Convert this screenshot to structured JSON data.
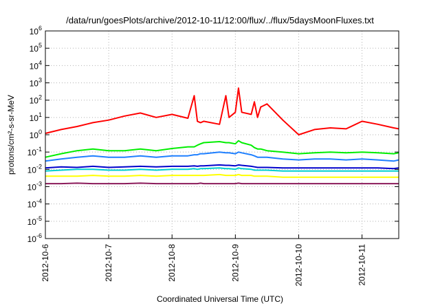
{
  "chart_data": {
    "type": "line",
    "title": "/data/run/goesPlots/archive/2012-10-11/12:00/flux/../flux/5daysMoonFluxes.txt",
    "xlabel": "Coordinated Universal Time (UTC)",
    "ylabel": "protons/cm²-s-sr-MeV",
    "y_scale": "log",
    "ylim": [
      1e-06,
      1000000.0
    ],
    "xlim": [
      "2012-10-06 00:00",
      "2012-10-11 14:00"
    ],
    "grid": true,
    "legend": "none",
    "x_tick_labels": [
      "2012-10-6",
      "2012-10-7",
      "2012-10-8",
      "2012-10-9",
      "2012-10-10",
      "2012-10-11"
    ],
    "y_tick_labels": [
      {
        "base": "10",
        "exp": "-6",
        "value": 1e-06
      },
      {
        "base": "10",
        "exp": "-5",
        "value": 1e-05
      },
      {
        "base": "10",
        "exp": "-4",
        "value": 0.0001
      },
      {
        "base": "10",
        "exp": "-3",
        "value": 0.001
      },
      {
        "base": "10",
        "exp": "-2",
        "value": 0.01
      },
      {
        "base": "10",
        "exp": "-1",
        "value": 0.1
      },
      {
        "base": "10",
        "exp": "0",
        "value": 1
      },
      {
        "base": "10",
        "exp": "1",
        "value": 10
      },
      {
        "base": "10",
        "exp": "2",
        "value": 100
      },
      {
        "base": "10",
        "exp": "3",
        "value": 1000
      },
      {
        "base": "10",
        "exp": "4",
        "value": 10000
      },
      {
        "base": "10",
        "exp": "5",
        "value": 100000
      },
      {
        "base": "10",
        "exp": "6",
        "value": 1000000
      }
    ],
    "x_days": [
      0,
      0.25,
      0.5,
      0.75,
      1,
      1.25,
      1.5,
      1.75,
      2,
      2.25,
      2.35,
      2.4,
      2.45,
      2.5,
      2.75,
      2.85,
      2.9,
      3,
      3.05,
      3.1,
      3.25,
      3.3,
      3.35,
      3.4,
      3.5,
      3.75,
      4,
      4.25,
      4.5,
      4.75,
      5,
      5.25,
      5.5,
      5.58
    ],
    "series": [
      {
        "color": "#ff0000",
        "values": [
          1.2,
          2,
          3,
          5,
          7,
          12,
          18,
          10,
          15,
          9,
          180,
          6,
          5,
          6,
          4,
          180,
          10,
          20,
          500,
          20,
          15,
          80,
          10,
          40,
          60,
          7,
          1,
          2,
          2.5,
          2.2,
          6,
          4,
          2.5,
          2.2
        ]
      },
      {
        "color": "#00ee00",
        "values": [
          0.05,
          0.08,
          0.12,
          0.15,
          0.12,
          0.12,
          0.15,
          0.12,
          0.16,
          0.2,
          0.2,
          0.25,
          0.3,
          0.35,
          0.4,
          0.35,
          0.35,
          0.3,
          0.45,
          0.35,
          0.25,
          0.18,
          0.15,
          0.15,
          0.12,
          0.1,
          0.08,
          0.09,
          0.1,
          0.09,
          0.1,
          0.09,
          0.08,
          0.09
        ]
      },
      {
        "color": "#1e7fff",
        "values": [
          0.03,
          0.04,
          0.05,
          0.06,
          0.05,
          0.05,
          0.06,
          0.05,
          0.06,
          0.06,
          0.07,
          0.07,
          0.08,
          0.08,
          0.1,
          0.09,
          0.09,
          0.08,
          0.1,
          0.09,
          0.07,
          0.06,
          0.05,
          0.05,
          0.05,
          0.04,
          0.035,
          0.04,
          0.04,
          0.035,
          0.04,
          0.035,
          0.03,
          0.035
        ]
      },
      {
        "color": "#00cfcf",
        "values": [
          0.008,
          0.009,
          0.01,
          0.01,
          0.009,
          0.009,
          0.01,
          0.009,
          0.01,
          0.01,
          0.011,
          0.01,
          0.011,
          0.011,
          0.012,
          0.011,
          0.011,
          0.01,
          0.012,
          0.011,
          0.01,
          0.009,
          0.009,
          0.009,
          0.009,
          0.008,
          0.008,
          0.008,
          0.008,
          0.008,
          0.008,
          0.008,
          0.008,
          0.008
        ]
      },
      {
        "color": "#0000cc",
        "values": [
          0.012,
          0.014,
          0.013,
          0.015,
          0.013,
          0.014,
          0.015,
          0.014,
          0.015,
          0.015,
          0.016,
          0.015,
          0.016,
          0.016,
          0.018,
          0.017,
          0.017,
          0.016,
          0.018,
          0.017,
          0.015,
          0.014,
          0.013,
          0.013,
          0.013,
          0.012,
          0.012,
          0.012,
          0.012,
          0.012,
          0.012,
          0.012,
          0.011,
          0.012
        ]
      },
      {
        "color": "#ffff00",
        "values": [
          0.004,
          0.004,
          0.004,
          0.0045,
          0.004,
          0.004,
          0.0045,
          0.004,
          0.0045,
          0.0045,
          0.0045,
          0.0045,
          0.0045,
          0.0045,
          0.005,
          0.0045,
          0.0045,
          0.0045,
          0.005,
          0.0045,
          0.0045,
          0.004,
          0.004,
          0.004,
          0.004,
          0.0035,
          0.0035,
          0.0035,
          0.0035,
          0.0035,
          0.0035,
          0.0035,
          0.0035,
          0.0035
        ]
      },
      {
        "color": "#8b1a5a",
        "values": [
          0.0015,
          0.0015,
          0.0016,
          0.0015,
          0.0015,
          0.0015,
          0.0016,
          0.0015,
          0.0015,
          0.0015,
          0.0015,
          0.0015,
          0.0016,
          0.0015,
          0.0015,
          0.0015,
          0.0015,
          0.0015,
          0.0016,
          0.0015,
          0.0015,
          0.0015,
          0.0015,
          0.0015,
          0.0015,
          0.0015,
          0.0015,
          0.0015,
          0.0015,
          0.0015,
          0.0015,
          0.0015,
          0.0015,
          0.0015
        ]
      }
    ]
  }
}
